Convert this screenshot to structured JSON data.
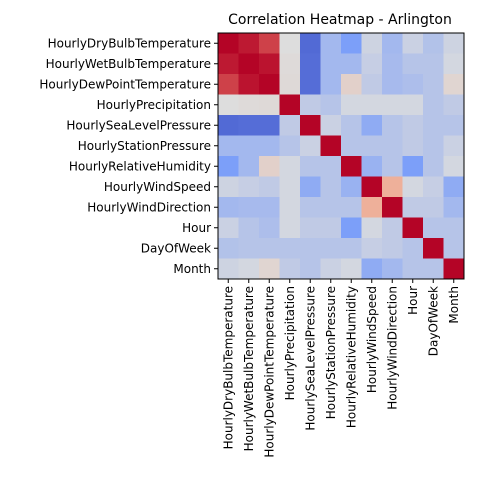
{
  "chart_data": {
    "type": "heatmap",
    "title": "Correlation Heatmap - Arlington",
    "xlabel": "",
    "ylabel": "",
    "labels": [
      "HourlyDryBulbTemperature",
      "HourlyWetBulbTemperature",
      "HourlyDewPointTemperature",
      "HourlyPrecipitation",
      "HourlySeaLevelPressure",
      "HourlyStationPressure",
      "HourlyRelativeHumidity",
      "HourlyWindSpeed",
      "HourlyWindDirection",
      "Hour",
      "DayOfWeek",
      "Month"
    ],
    "colormap": "coolwarm",
    "value_range": [
      -1,
      1
    ],
    "grid": false,
    "legend": "none",
    "values": [
      [
        1.0,
        0.93,
        0.8,
        0.0,
        -0.82,
        -0.3,
        -0.5,
        -0.08,
        -0.3,
        -0.1,
        -0.22,
        -0.08
      ],
      [
        0.93,
        1.0,
        0.95,
        0.02,
        -0.8,
        -0.3,
        -0.3,
        -0.12,
        -0.28,
        -0.2,
        -0.2,
        -0.05
      ],
      [
        0.8,
        0.95,
        1.0,
        0.03,
        -0.8,
        -0.3,
        0.1,
        -0.15,
        -0.28,
        -0.25,
        -0.2,
        0.06
      ],
      [
        0.0,
        0.02,
        0.03,
        1.0,
        -0.15,
        -0.2,
        -0.05,
        -0.05,
        -0.05,
        -0.05,
        -0.2,
        -0.15
      ],
      [
        -0.82,
        -0.8,
        -0.8,
        -0.15,
        1.0,
        -0.1,
        -0.2,
        -0.4,
        -0.2,
        -0.15,
        -0.2,
        -0.2
      ],
      [
        -0.3,
        -0.3,
        -0.3,
        -0.2,
        -0.1,
        1.0,
        -0.2,
        -0.2,
        -0.2,
        -0.15,
        -0.2,
        -0.1
      ],
      [
        -0.5,
        -0.3,
        0.1,
        -0.05,
        -0.2,
        -0.2,
        1.0,
        -0.35,
        -0.2,
        -0.5,
        -0.2,
        -0.05
      ],
      [
        -0.08,
        -0.12,
        -0.15,
        -0.05,
        -0.4,
        -0.2,
        -0.35,
        1.0,
        0.35,
        -0.05,
        -0.12,
        -0.4
      ],
      [
        -0.3,
        -0.28,
        -0.28,
        -0.05,
        -0.2,
        -0.2,
        -0.2,
        0.35,
        1.0,
        -0.15,
        -0.15,
        -0.3
      ],
      [
        -0.1,
        -0.2,
        -0.25,
        -0.05,
        -0.15,
        -0.15,
        -0.5,
        -0.05,
        -0.15,
        1.0,
        -0.2,
        -0.2
      ],
      [
        -0.22,
        -0.2,
        -0.2,
        -0.2,
        -0.2,
        -0.2,
        -0.2,
        -0.12,
        -0.15,
        -0.2,
        1.0,
        -0.2
      ],
      [
        -0.08,
        -0.05,
        0.06,
        -0.15,
        -0.2,
        -0.1,
        -0.05,
        -0.4,
        -0.3,
        -0.2,
        -0.2,
        1.0
      ]
    ]
  }
}
